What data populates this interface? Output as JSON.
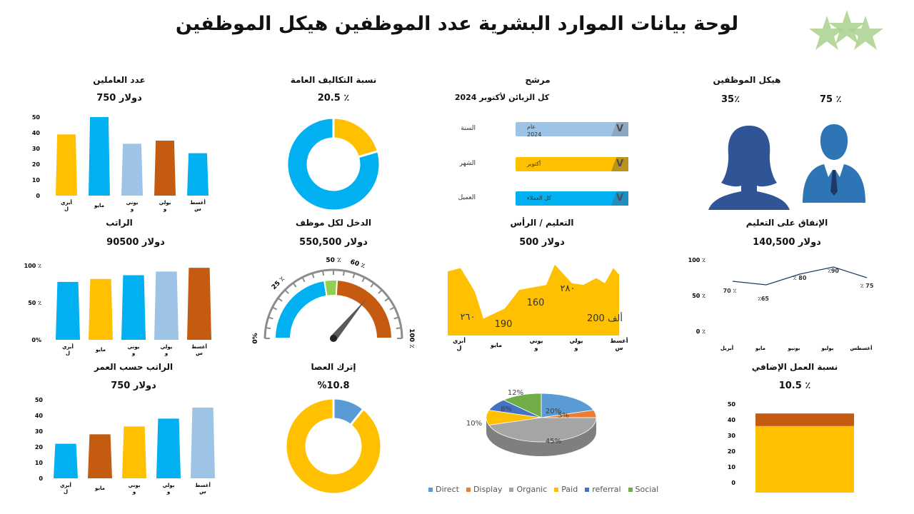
{
  "header": {
    "title": "لوحة بيانات الموارد البشرية عدد الموظفين هيكل الموظفين"
  },
  "colors": {
    "yellow": "#FFC000",
    "blue": "#00B0F0",
    "lightblue": "#9DC3E6",
    "orange": "#C55A11",
    "green": "#92D050",
    "navy": "#203864",
    "pieGray": "#A5A5A5"
  },
  "panels": {
    "employees": {
      "title": "عدد العاملين",
      "value": "750 دولار"
    },
    "overhead": {
      "title": "نسبة التكاليف العامة",
      "value": "20.5 ٪"
    },
    "filter": {
      "title": "مرشح",
      "subtitle": "كل الزبائن لأكتوبر 2024",
      "rows": [
        {
          "label": "السنة",
          "text1": "عام",
          "text2": "2024"
        },
        {
          "label": "الشهر",
          "text1": "أكتوبر",
          "text2": ""
        },
        {
          "label": "العميل",
          "text1": "كل العملاء",
          "text2": ""
        }
      ],
      "arrow": "V"
    },
    "structure": {
      "title": "هيكل الموظفين",
      "female_pct": "35٪",
      "male_pct": "75 ٪"
    },
    "salary": {
      "title": "الراتب",
      "value": "90500 دولار"
    },
    "income": {
      "title": "الدخل لكل موظف",
      "value": "550,500 دولار"
    },
    "education": {
      "title": "التعليم / الرأس",
      "value": "500 دولار"
    },
    "education_spend": {
      "title": "الإنفاق على التعليم",
      "value": "140,500 دولار"
    },
    "salary_age": {
      "title": "الراتب حسب العمر",
      "value": "750 دولار"
    },
    "attrition": {
      "title": "إترك العصا",
      "value": "%10.8"
    },
    "overtime": {
      "title": "نسبة العمل الإضافي",
      "value": "10.5 ٪"
    }
  },
  "chart_data": [
    {
      "id": "employees",
      "type": "bar",
      "categories": [
        "أبريل",
        "مايو",
        "يونيو",
        "يوليو",
        "أغسطس"
      ],
      "values": [
        39,
        50,
        33,
        35,
        27
      ],
      "bar_colors": [
        "#FFC000",
        "#00B0F0",
        "#9DC3E6",
        "#C55A11",
        "#00B0F0"
      ],
      "yticks": [
        "50",
        "40",
        "30",
        "20",
        "10",
        "0"
      ],
      "ylim": [
        0,
        50
      ]
    },
    {
      "id": "overhead",
      "type": "pie",
      "subtype": "donut",
      "slices": [
        {
          "label": "overhead",
          "value": 20.5,
          "color": "#FFC000"
        },
        {
          "label": "rest",
          "value": 79.5,
          "color": "#00B0F0"
        }
      ]
    },
    {
      "id": "salary",
      "type": "bar",
      "categories": [
        "أبريل",
        "مايو",
        "يونيو",
        "يوليو",
        "أغسطس"
      ],
      "values": [
        78,
        82,
        87,
        92,
        97
      ],
      "bar_colors": [
        "#00B0F0",
        "#FFC000",
        "#00B0F0",
        "#9DC3E6",
        "#C55A11"
      ],
      "yticks": [
        "100 ٪",
        "50 ٪",
        "0%"
      ],
      "ylim": [
        0,
        100
      ]
    },
    {
      "id": "income",
      "type": "gauge",
      "tick_labels": [
        "0%",
        "25 ٪",
        "50 ٪",
        "60 ٪",
        "100 ٪"
      ],
      "tick_values": [
        0,
        25,
        50,
        60,
        100
      ],
      "bands": [
        {
          "from": 0,
          "to": 45,
          "color": "#00B0F0"
        },
        {
          "from": 45,
          "to": 52,
          "color": "#92D050"
        },
        {
          "from": 52,
          "to": 100,
          "color": "#C55A11"
        }
      ],
      "needle": 72
    },
    {
      "id": "education",
      "type": "area",
      "categories": [
        "أبريل",
        "مايو",
        "يونيو",
        "يوليو",
        "أغسطس"
      ],
      "values": [
        260,
        190,
        160,
        280,
        200
      ],
      "data_labels": [
        "٢٦٠",
        "190",
        "160",
        "٢٨٠",
        "200 ألف"
      ],
      "color": "#FFC000"
    },
    {
      "id": "education_spend",
      "type": "line",
      "categories": [
        "أبريل",
        "مايو",
        "يونيو",
        "يوليو",
        "أغسطس"
      ],
      "values": [
        70,
        65,
        80,
        90,
        75
      ],
      "data_labels": [
        "70 ٪",
        "٪65",
        "٪ 80",
        "٪90",
        "٪ 75"
      ],
      "yticks": [
        "100 ٪",
        "50 ٪",
        "0 ٪"
      ],
      "ylim": [
        0,
        100
      ],
      "color": "#203864"
    },
    {
      "id": "salary_age",
      "type": "bar",
      "categories": [
        "أبريل",
        "مايو",
        "يونيو",
        "يوليو",
        "أغسطس"
      ],
      "values": [
        22,
        28,
        33,
        38,
        45
      ],
      "bar_colors": [
        "#00B0F0",
        "#C55A11",
        "#FFC000",
        "#00B0F0",
        "#9DC3E6"
      ],
      "yticks": [
        "50",
        "40",
        "30",
        "20",
        "10",
        "0"
      ],
      "ylim": [
        0,
        50
      ]
    },
    {
      "id": "attrition",
      "type": "pie",
      "subtype": "donut",
      "slices": [
        {
          "label": "attrition",
          "value": 10.8,
          "color": "#5B9BD5"
        },
        {
          "label": "rest",
          "value": 89.2,
          "color": "#FFC000"
        }
      ]
    },
    {
      "id": "traffic",
      "type": "pie",
      "subtype": "3d",
      "slices": [
        {
          "label": "Direct",
          "value": 20,
          "pct": "20%",
          "color": "#5B9BD5"
        },
        {
          "label": "Display",
          "value": 5,
          "pct": "5%",
          "color": "#ED7D31"
        },
        {
          "label": "Organic",
          "value": 45,
          "pct": "45%",
          "color": "#A5A5A5"
        },
        {
          "label": "Paid",
          "value": 10,
          "pct": "10%",
          "color": "#FFC000"
        },
        {
          "label": "referral",
          "value": 8,
          "pct": "8%",
          "color": "#4472C4"
        },
        {
          "label": "Social",
          "value": 12,
          "pct": "12%",
          "color": "#70AD47"
        }
      ]
    },
    {
      "id": "overtime",
      "type": "bar",
      "subtype": "stacked",
      "categories": [
        ""
      ],
      "series": [
        {
          "name": "base",
          "values": [
            36
          ],
          "color": "#FFC000"
        },
        {
          "name": "overtime",
          "values": [
            8
          ],
          "color": "#C55A11"
        }
      ],
      "yticks": [
        "50",
        "40",
        "30",
        "20",
        "10",
        "0"
      ],
      "ylim": [
        0,
        50
      ]
    }
  ]
}
